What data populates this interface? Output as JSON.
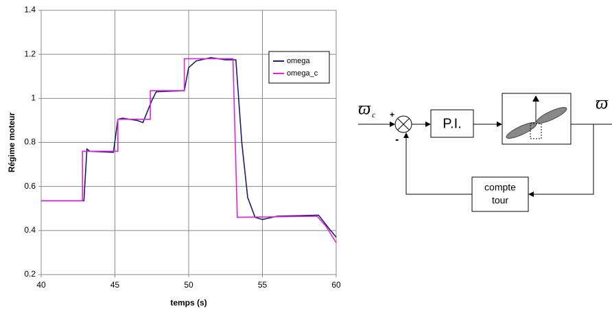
{
  "chart_data": {
    "type": "line",
    "xlabel": "temps (s)",
    "ylabel": "Régime moteur",
    "xlim": [
      40,
      60
    ],
    "xticks": [
      40,
      45,
      50,
      55,
      60
    ],
    "ylim": [
      0.2,
      1.4
    ],
    "yticks": [
      0.2,
      0.4,
      0.6,
      0.8,
      1,
      1.2,
      1.4
    ],
    "grid": true,
    "legend": "upper right",
    "series": [
      {
        "name": "omega",
        "color": "#1a1a6e",
        "x": [
          40,
          42.9,
          43.1,
          43.3,
          44.9,
          45.2,
          45.5,
          46.5,
          46.9,
          47.5,
          47.8,
          49.7,
          50.0,
          50.5,
          51.5,
          52.5,
          53.2,
          53.6,
          54.0,
          54.5,
          55,
          56,
          58.8,
          59.5,
          60
        ],
        "values": [
          0.535,
          0.535,
          0.77,
          0.76,
          0.755,
          0.905,
          0.91,
          0.9,
          0.89,
          0.99,
          1.03,
          1.035,
          1.14,
          1.17,
          1.185,
          1.175,
          1.175,
          0.8,
          0.55,
          0.46,
          0.45,
          0.465,
          0.47,
          0.41,
          0.37
        ]
      },
      {
        "name": "omega_c",
        "color": "#e020e0",
        "x": [
          40,
          42.8,
          42.8,
          45.2,
          45.2,
          47.4,
          47.4,
          49.7,
          49.7,
          53.0,
          53.3,
          58.7,
          59.3,
          60
        ],
        "values": [
          0.535,
          0.535,
          0.76,
          0.76,
          0.905,
          0.905,
          1.035,
          1.035,
          1.18,
          1.18,
          0.46,
          0.465,
          0.42,
          0.345
        ]
      }
    ]
  },
  "diagram": {
    "input": {
      "symbol": "ϖ",
      "subscript": "c"
    },
    "output": {
      "symbol": "ϖ"
    },
    "plus": "+",
    "minus": "-",
    "controller": "P.I.",
    "sensor": [
      "compte",
      "tour"
    ]
  }
}
